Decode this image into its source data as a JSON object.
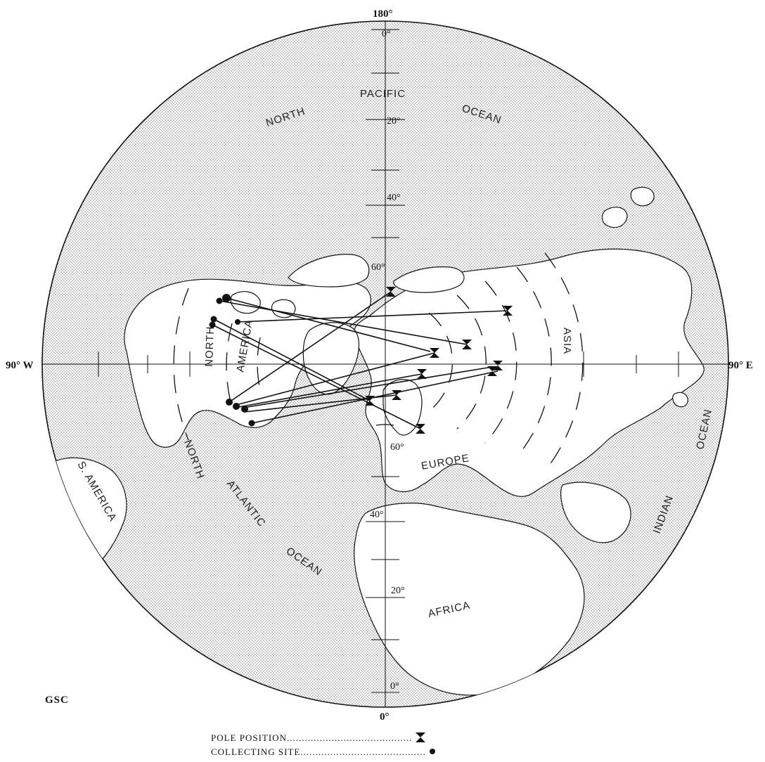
{
  "map": {
    "top_degree": "180°",
    "bottom_degree": "0°",
    "left_degree": "90° W",
    "right_degree": "90° E",
    "lat_labels": [
      "0°",
      "20°",
      "40°",
      "60°",
      "60°",
      "40°",
      "20°",
      "0°"
    ],
    "ocean_labels": {
      "north": "NORTH",
      "pacific": "PACIFIC",
      "ocean_top": "OCEAN",
      "north_atlantic_1": "NORTH",
      "north_atlantic_2": "ATLANTIC",
      "ocean_atlantic": "OCEAN",
      "indian": "INDIAN",
      "ocean_indian": "OCEAN"
    },
    "land_labels": {
      "north_america_1": "NORTH",
      "north_america_2": "AMERICA",
      "s_america": "S. AMERICA",
      "europe": "EUROPE",
      "asia": "ASIA",
      "africa": "AFRICA"
    },
    "credit": "GSC"
  },
  "legend": {
    "pole_position": "POLE POSITION",
    "collecting_site": "COLLECTING SITE"
  },
  "colors": {
    "ocean_stipple": "#9a9a9a",
    "land": "#ffffff",
    "ink": "#111111"
  }
}
